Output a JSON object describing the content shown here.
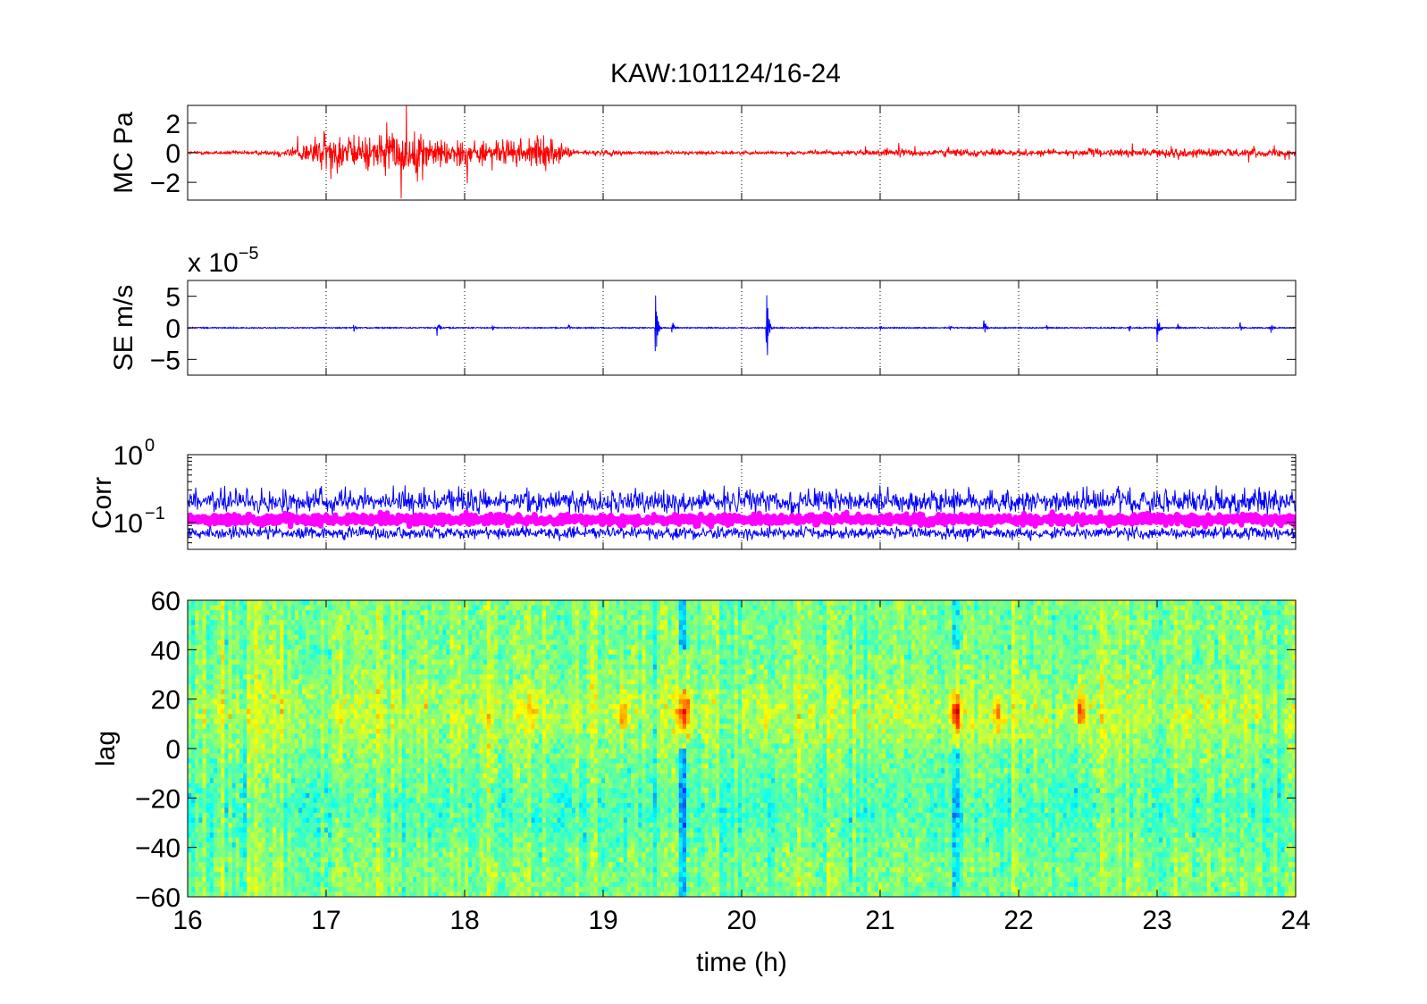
{
  "title": "KAW:101124/16-24",
  "colors": {
    "mc_trace": "#ff0000",
    "se_trace": "#0000ff",
    "corr_max": "#0000ff",
    "corr_mean": "#ff00ff",
    "grid": "#000000"
  },
  "x_axis": {
    "label": "time (h)",
    "range": [
      16,
      24
    ],
    "ticks": [
      16,
      17,
      18,
      19,
      20,
      21,
      22,
      23,
      24
    ],
    "tick_labels": [
      "16",
      "17",
      "18",
      "19",
      "20",
      "21",
      "22",
      "23",
      "24"
    ]
  },
  "chart_data": [
    {
      "type": "line",
      "panel": "MC",
      "ylabel": "MC Pa",
      "ylim": [
        -3.2,
        3.2
      ],
      "yticks": [
        -2,
        0,
        2
      ],
      "ytick_labels": [
        "−2",
        "0",
        "2"
      ],
      "grid": "vertical dotted",
      "series": [
        {
          "envelope_x": [
            16,
            16.6,
            16.8,
            17.0,
            17.2,
            17.4,
            17.6,
            17.8,
            18.0,
            18.2,
            18.4,
            18.6,
            18.8,
            19.0,
            19.3,
            20.0,
            20.5,
            21.0,
            21.5,
            22.0,
            22.2,
            22.5,
            23.0,
            23.2,
            23.5,
            24.0
          ],
          "envelope_y": [
            0.2,
            0.3,
            1.0,
            2.8,
            2.0,
            2.5,
            3.0,
            2.0,
            1.8,
            1.5,
            1.8,
            2.0,
            0.3,
            0.4,
            0.25,
            0.2,
            0.2,
            0.45,
            0.5,
            0.4,
            0.4,
            0.5,
            0.5,
            0.6,
            0.55,
            0.45
          ]
        }
      ]
    },
    {
      "type": "line",
      "panel": "SE",
      "ylabel": "SE m/s",
      "scale_multiplier": "x 10",
      "scale_exponent": "−5",
      "ylim": [
        -7.5,
        7.5
      ],
      "yticks": [
        -5,
        0,
        5
      ],
      "ytick_labels": [
        "−5",
        "0",
        "5"
      ],
      "grid": "vertical dotted",
      "series": [
        {
          "baseline_amplitude": 0.08,
          "events": [
            {
              "t": 17.2,
              "amp": 0.8
            },
            {
              "t": 17.8,
              "amp": 2.0
            },
            {
              "t": 18.2,
              "amp": 0.6
            },
            {
              "t": 18.75,
              "amp": 0.7
            },
            {
              "t": 19.38,
              "amp": 5.5
            },
            {
              "t": 19.5,
              "amp": 1.3
            },
            {
              "t": 20.18,
              "amp": 7.5
            },
            {
              "t": 21.0,
              "amp": 0.6
            },
            {
              "t": 21.5,
              "amp": 0.8
            },
            {
              "t": 21.75,
              "amp": 1.8
            },
            {
              "t": 22.2,
              "amp": 0.6
            },
            {
              "t": 22.8,
              "amp": 0.5
            },
            {
              "t": 23.0,
              "amp": 3.5
            },
            {
              "t": 23.15,
              "amp": 1.0
            },
            {
              "t": 23.6,
              "amp": 0.9
            },
            {
              "t": 23.82,
              "amp": 1.2
            }
          ]
        }
      ]
    },
    {
      "type": "line",
      "panel": "Corr",
      "ylabel": "Corr",
      "yscale": "log",
      "ylim": [
        0.04,
        1
      ],
      "yticks": [
        0.1,
        1
      ],
      "ytick_labels": [
        {
          "base": "10",
          "exp": "−1"
        },
        {
          "base": "10",
          "exp": "0"
        }
      ],
      "grid": "vertical dotted",
      "series": [
        {
          "role": "max",
          "color": "#0000ff",
          "typical_low": 0.07,
          "typical_high": 0.2,
          "peak": 0.32
        },
        {
          "role": "mean",
          "color": "#ff00ff",
          "typical_low": 0.09,
          "typical_high": 0.13
        }
      ]
    },
    {
      "type": "heatmap",
      "panel": "lag",
      "ylabel": "lag",
      "ylim": [
        -60,
        60
      ],
      "yticks": [
        -60,
        -40,
        -20,
        0,
        20,
        40,
        60
      ],
      "ytick_labels": [
        "−60",
        "−40",
        "−20",
        "0",
        "20",
        "40",
        "60"
      ],
      "colormap": "jet",
      "hotspots": [
        {
          "t": 19.58,
          "lag": 15,
          "strength": 1.0
        },
        {
          "t": 21.55,
          "lag": 14,
          "strength": 0.85
        },
        {
          "t": 22.45,
          "lag": 15,
          "strength": 0.6
        },
        {
          "t": 19.15,
          "lag": 15,
          "strength": 0.45
        },
        {
          "t": 21.85,
          "lag": 14,
          "strength": 0.55
        },
        {
          "t": 18.5,
          "lag": 15,
          "strength": 0.35
        },
        {
          "t": 20.2,
          "lag": 12,
          "strength": 0.3
        }
      ],
      "cold_columns": [
        19.58,
        21.55
      ]
    }
  ]
}
